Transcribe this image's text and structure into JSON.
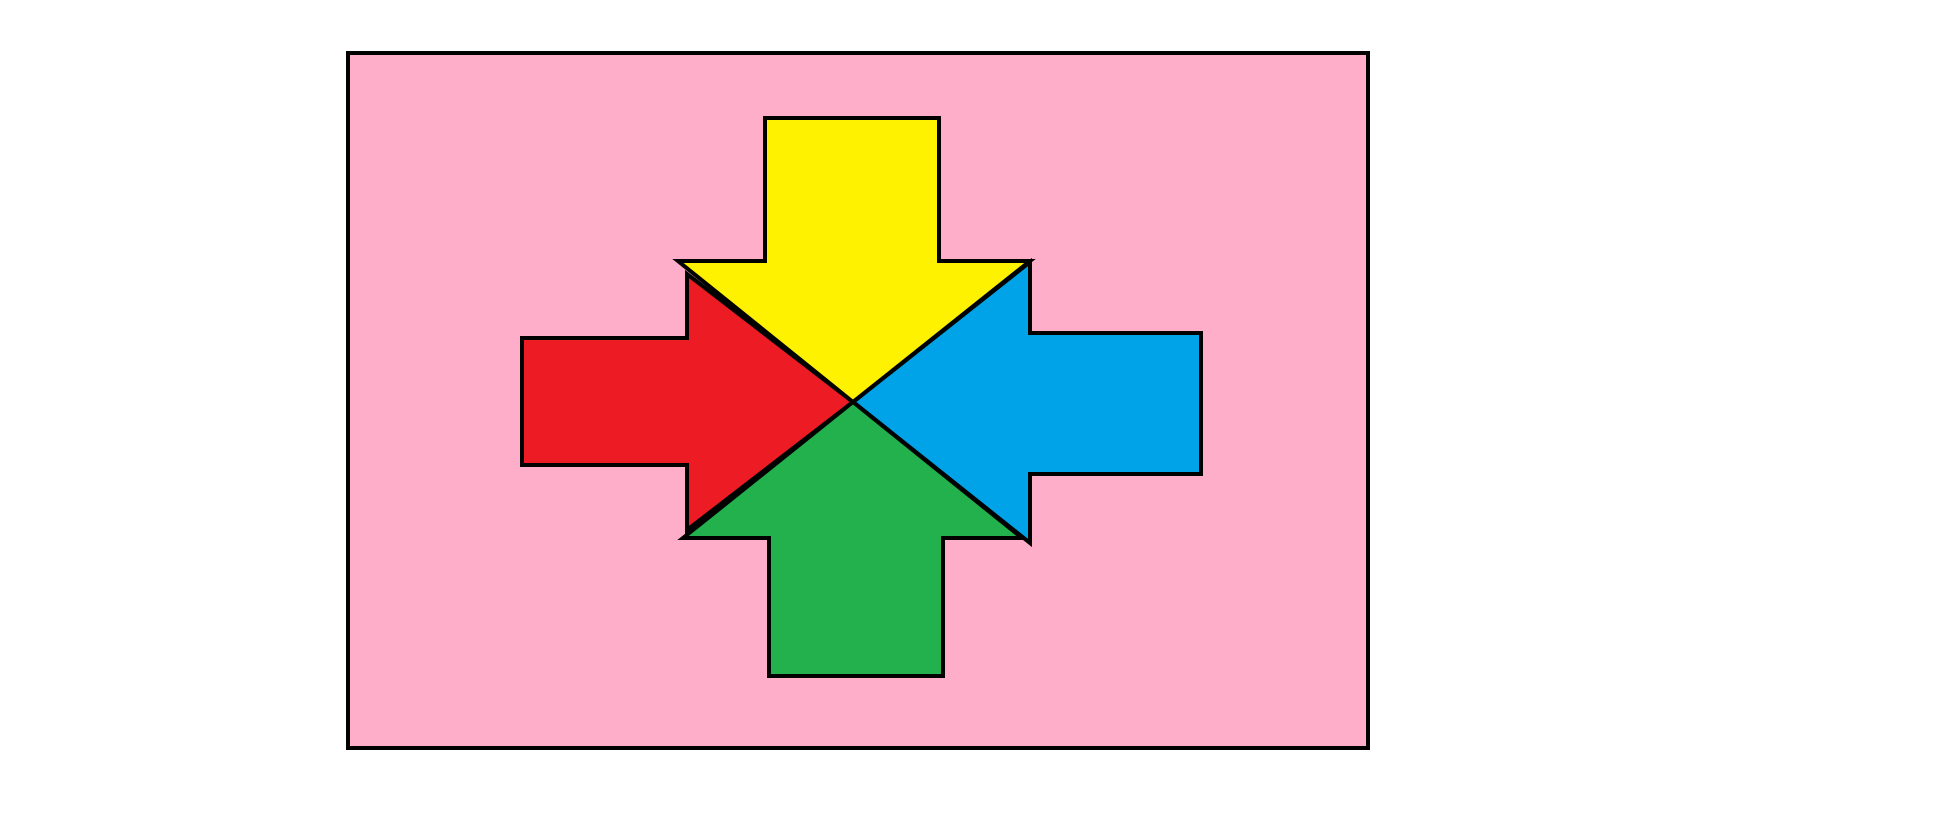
{
  "colors": {
    "page_background": "#ffffff",
    "panel_fill": "#ffaec9",
    "outline": "#000000",
    "arrow_down": "#fff200",
    "arrow_right": "#ed1c24",
    "arrow_left": "#00a2e8",
    "arrow_up": "#22b14c"
  },
  "arrows": [
    {
      "name": "arrow-down",
      "points_to": "center",
      "from": "top"
    },
    {
      "name": "arrow-right",
      "points_to": "center",
      "from": "left"
    },
    {
      "name": "arrow-left",
      "points_to": "center",
      "from": "right"
    },
    {
      "name": "arrow-up",
      "points_to": "center",
      "from": "bottom"
    }
  ]
}
